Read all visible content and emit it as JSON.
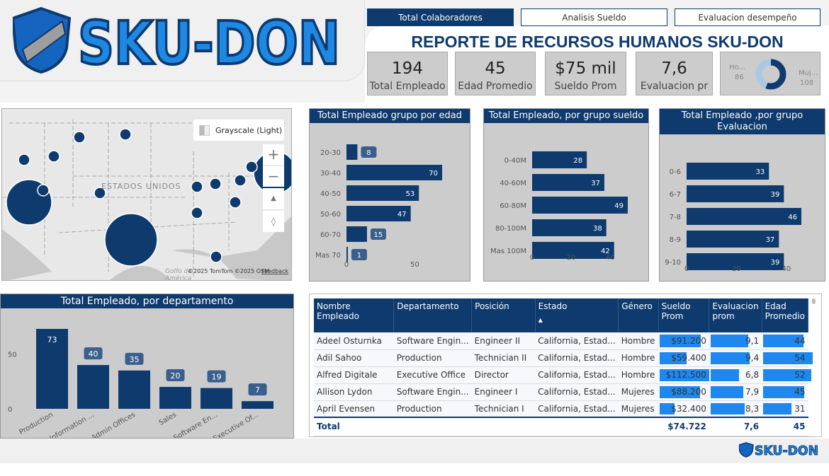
{
  "logo": {
    "text": "SKU-DON"
  },
  "tabs": [
    {
      "label": "Total Colaboradores",
      "active": true
    },
    {
      "label": "Analisis Sueldo"
    },
    {
      "label": "Evaluacion desempeño"
    }
  ],
  "title": "REPORTE DE RECURSOS HUMANOS SKU-DON",
  "kpis": [
    {
      "value": "194",
      "label": "Total Empleado"
    },
    {
      "value": "45",
      "label": "Edad Promedio"
    },
    {
      "value": "$75 mil",
      "label": "Sueldo Prom"
    },
    {
      "value": "7,6",
      "label": "Evaluacion pr"
    }
  ],
  "gender_donut": {
    "left_label": "Ho...",
    "left_value": "86",
    "right_label": "Muj...",
    "right_value": "108",
    "colors": {
      "hombre": "#a9c8e6",
      "mujeres": "#0e3a6e"
    }
  },
  "map": {
    "style_button": "Grayscale (Light)",
    "country_label": "ESTADOS UNIDOS",
    "sea_label": "Golfo de",
    "sea_label2": "América",
    "attribution": "©2025 TomTom ©2025 OSM",
    "feedback": "Feedback",
    "zoom_in": "+",
    "zoom_out": "−"
  },
  "colors": {
    "primary": "#0e3a6e",
    "label_bg": "#3a5f8c",
    "table_bar": "#1e88f0",
    "panel_bg": "#cccccc"
  },
  "chart_data": [
    {
      "type": "bar",
      "orientation": "horizontal",
      "title": "Total Empleado grupo por edad",
      "categories": [
        "20-30",
        "30-40",
        "40-50",
        "50-60",
        "60-70",
        "Mas 70"
      ],
      "values": [
        8,
        70,
        53,
        47,
        15,
        1
      ],
      "xticks": [
        0,
        50
      ],
      "xlim": [
        0,
        70
      ]
    },
    {
      "type": "bar",
      "orientation": "horizontal",
      "title": "Total Empleado, por grupo sueldo",
      "categories": [
        "0-40M",
        "40-60M",
        "60-80M",
        "80-100M",
        "Mas 100M"
      ],
      "values": [
        28,
        37,
        49,
        38,
        42
      ],
      "xticks": [
        0,
        20,
        40
      ],
      "xlim": [
        0,
        49
      ]
    },
    {
      "type": "bar",
      "orientation": "horizontal",
      "title": "Total Empleado ,por grupo Evaluacion",
      "categories": [
        "0-6",
        "6-7",
        "7-8",
        "8-9",
        "9-10"
      ],
      "values": [
        33,
        39,
        46,
        37,
        39
      ],
      "xticks": [
        0,
        20,
        40
      ],
      "xlim": [
        0,
        46
      ]
    },
    {
      "type": "bar",
      "orientation": "vertical",
      "title": "Total Empleado, por departamento",
      "categories": [
        "Production",
        "Information ...",
        "Admin Offices",
        "Sales",
        "Software En...",
        "Executive Of..."
      ],
      "values": [
        73,
        40,
        35,
        20,
        19,
        7
      ],
      "yticks": [
        0,
        50
      ],
      "ylim": [
        0,
        73
      ]
    }
  ],
  "table": {
    "columns": [
      "Nombre Empleado",
      "Departamento",
      "Posición",
      "Estado",
      "Género",
      "Sueldo Prom",
      "Evaluacion prom",
      "Edad Promedio"
    ],
    "sort_indicator": "▲",
    "rows": [
      [
        "Adeel Osturnka",
        "Software Engin...",
        "Engineer II",
        "California, Estad...",
        "Hombre",
        "$91.200",
        "9,1",
        "44"
      ],
      [
        "Adil Sahoo",
        "Production",
        "Technician II",
        "California, Estad...",
        "Hombre",
        "$59.400",
        "9,4",
        "54"
      ],
      [
        "Alfred Digitale",
        "Executive Office",
        "Director",
        "California, Estad...",
        "Hombre",
        "$112.500",
        "6,8",
        "52"
      ],
      [
        "Allison Lydon",
        "Software Engin...",
        "Engineer I",
        "California, Estad...",
        "Mujeres",
        "$88.200",
        "7,9",
        "45"
      ],
      [
        "April Evensen",
        "Production",
        "Technician I",
        "California, Estad...",
        "Mujeres",
        "$32.400",
        "8,3",
        "31"
      ]
    ],
    "bar_values": [
      [
        91200,
        9.1,
        44
      ],
      [
        59400,
        9.4,
        54
      ],
      [
        112500,
        6.8,
        52
      ],
      [
        88200,
        7.9,
        45
      ],
      [
        32400,
        8.3,
        31
      ]
    ],
    "total": {
      "label": "Total",
      "sueldo": "$74.722",
      "evaluacion": "7,6",
      "edad": "45"
    }
  }
}
